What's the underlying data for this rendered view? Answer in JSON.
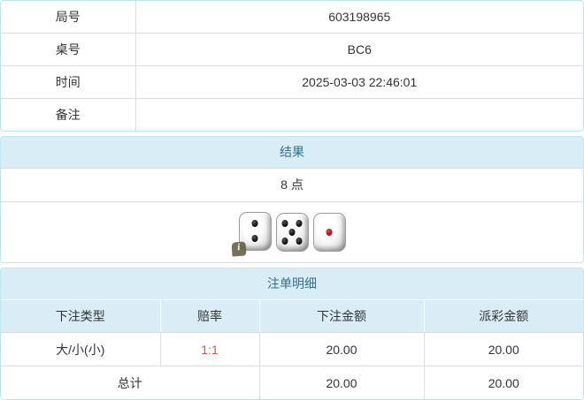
{
  "info_table": {
    "rows": [
      {
        "label": "局号",
        "value": "603198965"
      },
      {
        "label": "桌号",
        "value": "BC6"
      },
      {
        "label": "时间",
        "value": "2025-03-03 22:46:01"
      },
      {
        "label": "备注",
        "value": ""
      }
    ]
  },
  "result_panel": {
    "title": "结果",
    "points": "8 点",
    "dice_values": [
      2,
      5,
      1
    ],
    "info_icon_glyph": "i"
  },
  "bets_panel": {
    "title": "注单明细",
    "columns": [
      "下注类型",
      "赔率",
      "下注金额",
      "派彩金额"
    ],
    "rows": [
      {
        "type": "大/小(小)",
        "odds": "1:1",
        "bet": "20.00",
        "payout": "20.00"
      }
    ],
    "total": {
      "label": "总计",
      "bet": "20.00",
      "payout": "20.00"
    }
  },
  "colors": {
    "panel_border": "#bce8f1",
    "heading_bg": "#d9edf7",
    "heading_text": "#31708f",
    "row_border": "#dddddd",
    "odds_red": "#d9534f",
    "text": "#333333"
  }
}
